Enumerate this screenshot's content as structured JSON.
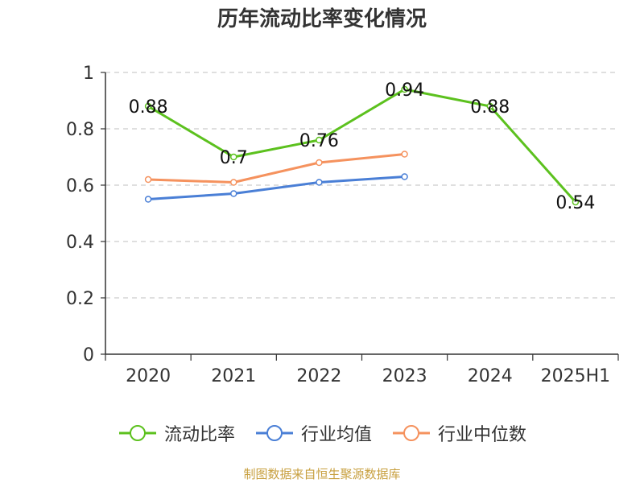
{
  "chart_data": {
    "type": "line",
    "title": "历年流动比率变化情况",
    "categories": [
      "2020",
      "2021",
      "2022",
      "2023",
      "2024",
      "2025H1"
    ],
    "series": [
      {
        "name": "流动比率",
        "color": "#5cc11e",
        "values": [
          0.88,
          0.7,
          0.76,
          0.94,
          0.88,
          0.54
        ],
        "data_labels": [
          "0.88",
          "0.7",
          "0.76",
          "0.94",
          "0.88",
          "0.54"
        ]
      },
      {
        "name": "行业均值",
        "color": "#4a7fd6",
        "values": [
          0.55,
          0.57,
          0.61,
          0.63,
          null,
          null
        ]
      },
      {
        "name": "行业中位数",
        "color": "#f5925e",
        "values": [
          0.62,
          0.61,
          0.68,
          0.71,
          null,
          null
        ]
      }
    ],
    "yticks": [
      "0",
      "0.2",
      "0.4",
      "0.6",
      "0.8",
      "1"
    ],
    "ylim": [
      0,
      1
    ],
    "grid": true,
    "legend_position": "bottom"
  },
  "source_note": "制图数据来自恒生聚源数据库"
}
